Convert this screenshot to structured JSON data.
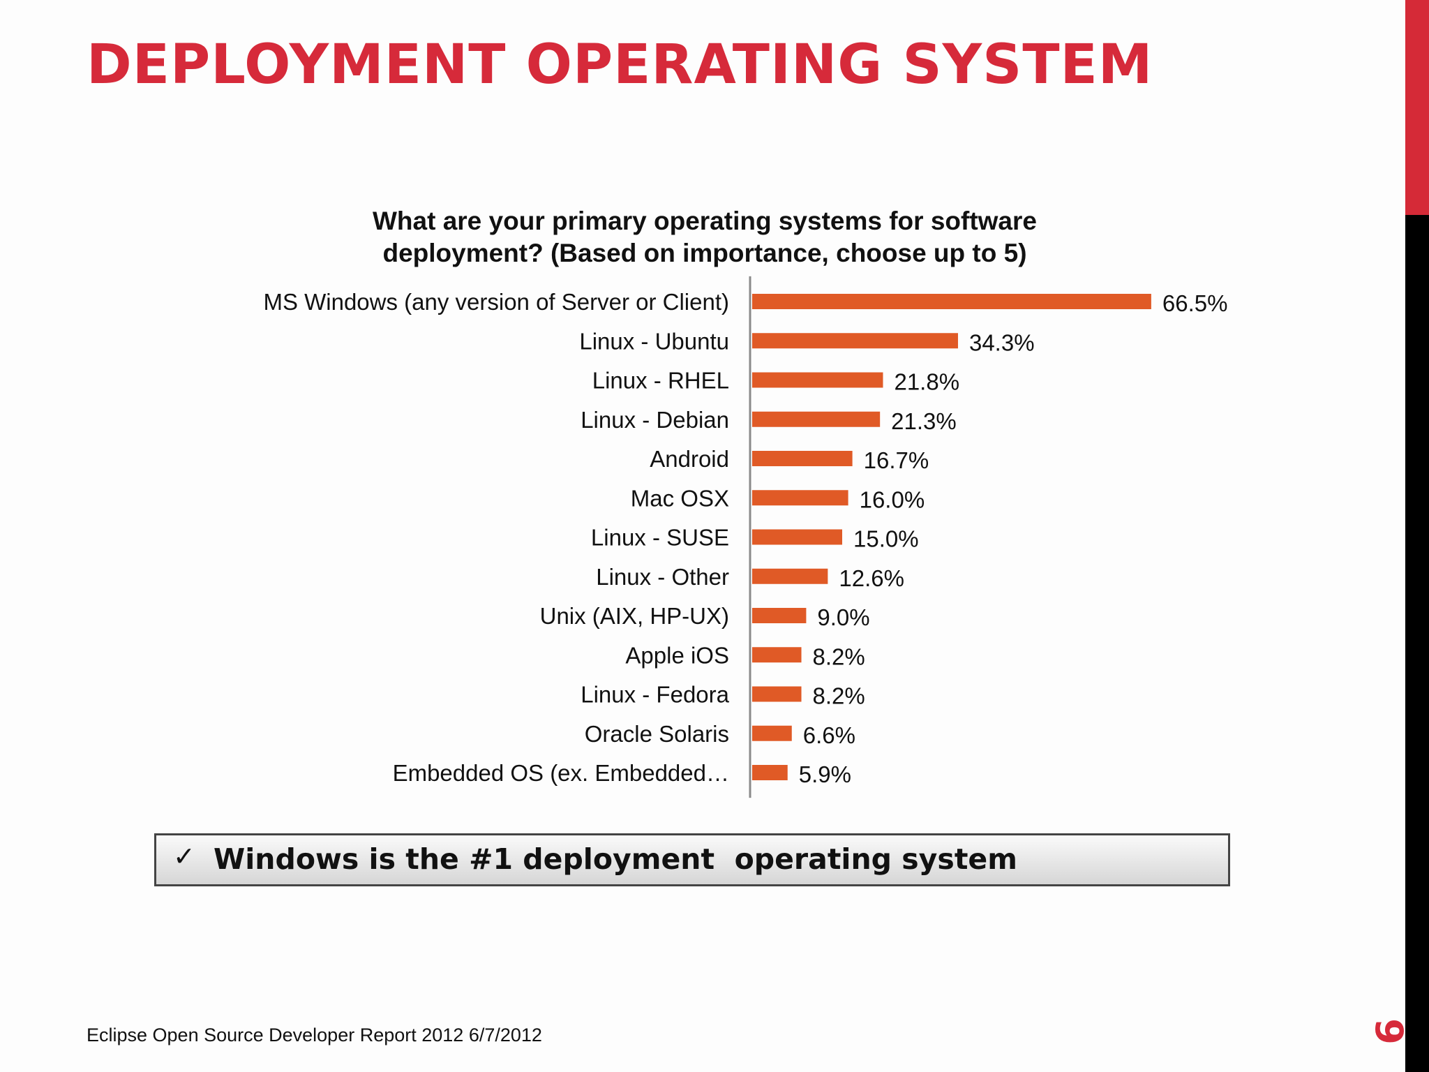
{
  "slide": {
    "title": "DEPLOYMENT OPERATING SYSTEM",
    "page_number": "9",
    "footer": "Eclipse Open Source Developer Report 2012   6/7/2012",
    "callout": {
      "icon": "checkmark",
      "check": "✓",
      "text": "Windows is the #1 deployment  operating system"
    }
  },
  "colors": {
    "title": "#d62a3a",
    "bar": "#e05a26",
    "sidebar_top": "#d52a37",
    "sidebar_bottom": "#000000",
    "axis": "#8a8a8a",
    "text": "#111111"
  },
  "chart_data": {
    "type": "bar",
    "orientation": "horizontal",
    "title": "What are your primary operating systems for software deployment? (Based on importance, choose up to 5)",
    "title_lines": [
      "What are your primary operating systems for software",
      "deployment? (Based on importance, choose up to 5)"
    ],
    "categories": [
      "MS Windows (any version of Server or Client)",
      "Linux - Ubuntu",
      "Linux - RHEL",
      "Linux - Debian",
      "Android",
      "Mac OSX",
      "Linux - SUSE",
      "Linux - Other",
      "Unix (AIX, HP-UX)",
      "Apple iOS",
      "Linux - Fedora",
      "Oracle Solaris",
      "Embedded OS (ex. Embedded…"
    ],
    "values": [
      66.5,
      34.3,
      21.8,
      21.3,
      16.7,
      16.0,
      15.0,
      12.6,
      9.0,
      8.2,
      8.2,
      6.6,
      5.9
    ],
    "data_labels": [
      "66.5%",
      "34.3%",
      "21.8%",
      "21.3%",
      "16.7%",
      "16.0%",
      "15.0%",
      "12.6%",
      "9.0%",
      "8.2%",
      "8.2%",
      "6.6%",
      "5.9%"
    ],
    "unit": "%",
    "xlim": [
      0,
      70
    ],
    "grid": false,
    "legend": "none"
  }
}
